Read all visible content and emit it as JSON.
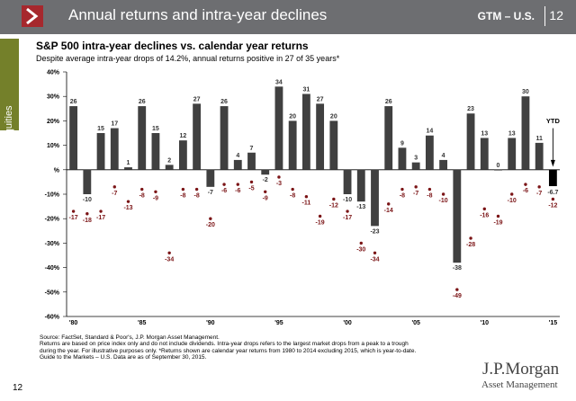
{
  "header": {
    "title": "Annual returns and intra-year declines",
    "market": "GTM – U.S.",
    "page": "12"
  },
  "side_tab": "Equities",
  "colors": {
    "bar": "#404040",
    "dot": "#7b1416",
    "header": "#6d6e71",
    "tab": "#74802a",
    "logo": "#a6282d",
    "ytd_bar": "#000000"
  },
  "chart_data": {
    "type": "bar",
    "title": "S&P 500 intra-year declines vs. calendar year returns",
    "subtitle": "Despite average intra-year drops of 14.2%, annual returns positive in 27 of 35 years*",
    "ylim": [
      -60,
      40
    ],
    "y_ticks": [
      "40%",
      "30%",
      "20%",
      "10%",
      "%",
      "-10%",
      "-20%",
      "-30%",
      "-40%",
      "-50%",
      "-60%"
    ],
    "x_tick_labels": [
      "'80",
      "'85",
      "'90",
      "'95",
      "'00",
      "'05",
      "'10",
      "'15"
    ],
    "x_tick_years": [
      1980,
      1985,
      1990,
      1995,
      2000,
      2005,
      2010,
      2015
    ],
    "years": [
      1980,
      1981,
      1982,
      1983,
      1984,
      1985,
      1986,
      1987,
      1988,
      1989,
      1990,
      1991,
      1992,
      1993,
      1994,
      1995,
      1996,
      1997,
      1998,
      1999,
      2000,
      2001,
      2002,
      2003,
      2004,
      2005,
      2006,
      2007,
      2008,
      2009,
      2010,
      2011,
      2012,
      2013,
      2014,
      2015
    ],
    "series": [
      {
        "name": "Calendar year return",
        "values": [
          26,
          -10,
          15,
          17,
          1,
          26,
          15,
          2,
          12,
          27,
          -7,
          26,
          4,
          7,
          -2,
          34,
          20,
          31,
          27,
          20,
          -10,
          -13,
          -23,
          26,
          9,
          3,
          14,
          4,
          -38,
          23,
          13,
          0,
          13,
          30,
          11,
          -6.7
        ]
      },
      {
        "name": "Intra-year decline",
        "values": [
          -17,
          -18,
          -17,
          -7,
          -13,
          -8,
          -9,
          -34,
          -8,
          -8,
          -20,
          -6,
          -6,
          -5,
          -9,
          -3,
          -8,
          -11,
          -19,
          -12,
          -17,
          -30,
          -34,
          -14,
          -8,
          -7,
          -8,
          -10,
          -49,
          -28,
          -16,
          -19,
          -10,
          -6,
          -7,
          -12
        ]
      }
    ],
    "bar_labels": [
      "26",
      "-10",
      "15",
      "17",
      "1",
      "26",
      "15",
      "2",
      "12",
      "27",
      "-7",
      "26",
      "4",
      "7",
      "-2",
      "34",
      "20",
      "31",
      "27",
      "20",
      "-10",
      "-13",
      "-23",
      "26",
      "9",
      "3",
      "14",
      "4",
      "-38",
      "23",
      "13",
      "0",
      "13",
      "30",
      "11",
      "-6.7"
    ],
    "dot_labels": [
      "-17",
      "-18",
      "-17",
      "-7",
      "-13",
      "-8",
      "-9",
      "-34",
      "-8",
      "-8",
      "-20",
      "-6",
      "-6",
      "-5",
      "-9",
      "-3",
      "-8",
      "-11",
      "-19",
      "-12",
      "-17",
      "-30",
      "-34",
      "-14",
      "-8",
      "-7",
      "-8",
      "-10",
      "-49",
      "-28",
      "-16",
      "-19",
      "-10",
      "-6",
      "-7",
      "-12"
    ],
    "annotation": "YTD"
  },
  "notes": [
    "Source: FactSet, Standard & Poor's, J.P. Morgan Asset Management.",
    "Returns are based on price index only and do not include dividends. Intra-year drops refers to the largest market drops from a peak to a trough",
    "during the year. For illustrative purposes only. *Returns shown are calendar year returns from 1980 to 2014 excluding 2015, which is year-to-date.",
    "Guide to the Markets – U.S. Data are as of September 30, 2015."
  ],
  "brand": {
    "name": "J.P.Morgan",
    "sub": "Asset Management"
  },
  "footer_page": "12"
}
